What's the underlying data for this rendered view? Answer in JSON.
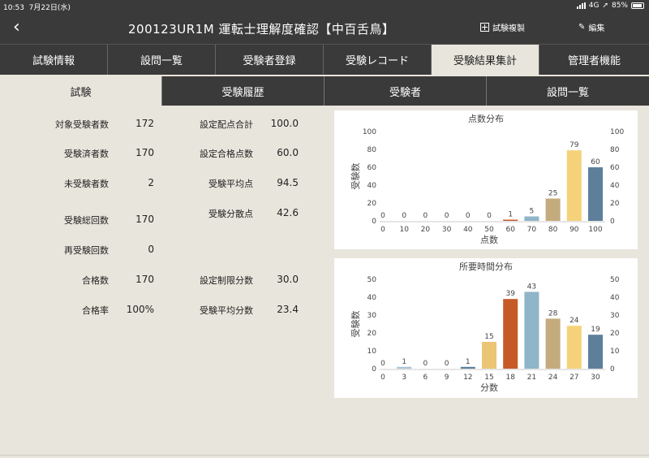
{
  "statusbar": {
    "time": "10:53",
    "date": "7月22日(水)",
    "network": "4G",
    "battery": "85%"
  },
  "header": {
    "title": "200123UR1M 運転士理解度確認【中百舌鳥】",
    "copy_label": "試験複製",
    "edit_label": "編集"
  },
  "main_tabs": [
    "試験情報",
    "設問一覧",
    "受験者登録",
    "受験レコード",
    "受験結果集計",
    "管理者機能"
  ],
  "sub_tabs": [
    "試験",
    "受験履歴",
    "受験者",
    "設問一覧"
  ],
  "stats": {
    "target": {
      "label": "対象受験者数",
      "value": "172"
    },
    "done": {
      "label": "受験済者数",
      "value": "170"
    },
    "not_done": {
      "label": "未受験者数",
      "value": "2"
    },
    "total_attempts": {
      "label": "受験総回数",
      "value": "170"
    },
    "retake": {
      "label": "再受験回数",
      "value": "0"
    },
    "pass_count": {
      "label": "合格数",
      "value": "170"
    },
    "pass_rate": {
      "label": "合格率",
      "value": "100%"
    },
    "score_total": {
      "label": "設定配点合計",
      "value": "100.0"
    },
    "pass_score": {
      "label": "設定合格点数",
      "value": "60.0"
    },
    "avg_score": {
      "label": "受験平均点",
      "value": "94.5"
    },
    "variance": {
      "label": "受験分散点",
      "value": "42.6"
    },
    "time_limit": {
      "label": "設定制限分数",
      "value": "30.0"
    },
    "avg_time": {
      "label": "受験平均分数",
      "value": "23.4"
    }
  },
  "chart_data": [
    {
      "type": "bar",
      "title": "点数分布",
      "xlabel": "点数",
      "ylabel": "受験数",
      "ylim": [
        0,
        100
      ],
      "yticks": [
        0,
        20,
        40,
        60,
        80,
        100
      ],
      "categories": [
        "0",
        "10",
        "20",
        "30",
        "40",
        "50",
        "60",
        "70",
        "80",
        "90",
        "100"
      ],
      "values": [
        0,
        0,
        0,
        0,
        0,
        0,
        1,
        5,
        25,
        79,
        60
      ],
      "colors": [
        "#a9c3d6",
        "#a9c3d6",
        "#a9c3d6",
        "#a9c3d6",
        "#a9c3d6",
        "#a9c3d6",
        "#c65a27",
        "#8fb5c9",
        "#c4ab7d",
        "#f5d27a",
        "#5e7f99"
      ]
    },
    {
      "type": "bar",
      "title": "所要時間分布",
      "xlabel": "分数",
      "ylabel": "受験数",
      "ylim": [
        0,
        50
      ],
      "yticks": [
        0,
        10,
        20,
        30,
        40,
        50
      ],
      "categories": [
        "0",
        "3",
        "6",
        "9",
        "12",
        "15",
        "18",
        "21",
        "24",
        "27",
        "30"
      ],
      "values": [
        0,
        1,
        0,
        0,
        1,
        15,
        39,
        43,
        28,
        24,
        19
      ],
      "colors": [
        "#a9c3d6",
        "#a9c3d6",
        "#a9c3d6",
        "#a9c3d6",
        "#5e7f99",
        "#ebc576",
        "#c65a27",
        "#8fb5c9",
        "#c4ab7d",
        "#f5d27a",
        "#5e7f99"
      ]
    }
  ]
}
